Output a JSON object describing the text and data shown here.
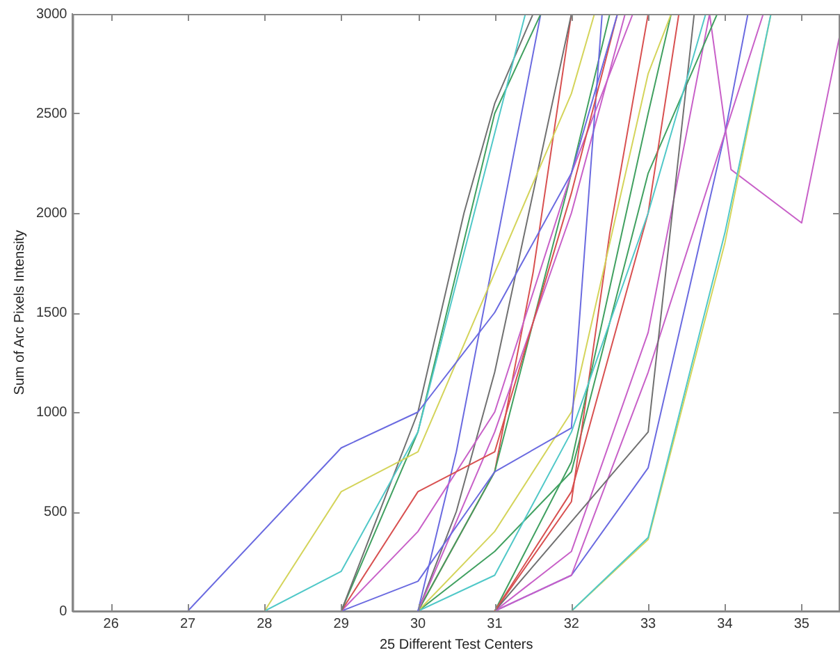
{
  "chart_data": {
    "type": "line",
    "xlabel": "25 Different Test Centers",
    "ylabel": "Sum of Arc Pixels Intensity",
    "xlim": [
      25.5,
      35.5
    ],
    "xticks": [
      26,
      27,
      28,
      29,
      30,
      31,
      32,
      33,
      34,
      35
    ],
    "ylim": [
      0,
      3000
    ],
    "yticks": [
      0,
      500,
      1000,
      1500,
      2000,
      2500,
      3000
    ],
    "grid": false,
    "legend": false,
    "marker": "none",
    "line_style": "solid",
    "series": [
      {
        "color": "#6a6ae0",
        "x": [
          27,
          29,
          30,
          31,
          32,
          32.6
        ],
        "values": [
          0,
          820,
          1000,
          1500,
          2200,
          3000
        ]
      },
      {
        "color": "#d4d45a",
        "x": [
          28,
          29,
          30,
          31,
          32,
          32.3
        ],
        "values": [
          0,
          600,
          800,
          1700,
          2600,
          3000
        ]
      },
      {
        "color": "#50c8c8",
        "x": [
          28,
          29,
          30,
          31,
          31.4
        ],
        "values": [
          0,
          200,
          900,
          2400,
          3000
        ]
      },
      {
        "color": "#707070",
        "x": [
          29,
          30,
          30.6,
          31,
          31.5
        ],
        "values": [
          0,
          1000,
          2000,
          2550,
          3000
        ]
      },
      {
        "color": "#40a060",
        "x": [
          29,
          30,
          31,
          31.6
        ],
        "values": [
          0,
          900,
          2500,
          3000
        ]
      },
      {
        "color": "#d85050",
        "x": [
          29,
          30,
          31,
          32,
          32.6
        ],
        "values": [
          0,
          600,
          800,
          2100,
          3000
        ]
      },
      {
        "color": "#c860c8",
        "x": [
          29,
          30,
          31,
          32,
          32.8
        ],
        "values": [
          0,
          400,
          1000,
          2200,
          3000
        ]
      },
      {
        "color": "#6a6ae0",
        "x": [
          29,
          30,
          31,
          32,
          32.4
        ],
        "values": [
          0,
          150,
          700,
          920,
          3000
        ]
      },
      {
        "color": "#6a6ae0",
        "x": [
          30,
          30.5,
          31,
          31.6
        ],
        "values": [
          0,
          800,
          1800,
          3000
        ]
      },
      {
        "color": "#c860c8",
        "x": [
          30,
          31,
          32,
          32.7
        ],
        "values": [
          0,
          900,
          2000,
          3000
        ]
      },
      {
        "color": "#40a060",
        "x": [
          30,
          31,
          32,
          32.5
        ],
        "values": [
          0,
          700,
          2200,
          3000
        ]
      },
      {
        "color": "#50c8c8",
        "x": [
          30,
          31,
          32,
          33,
          33.75
        ],
        "values": [
          0,
          180,
          900,
          2000,
          3000
        ]
      },
      {
        "color": "#d4d45a",
        "x": [
          30,
          31,
          32,
          33,
          33.3
        ],
        "values": [
          0,
          400,
          1000,
          2700,
          3000
        ]
      },
      {
        "color": "#d85050",
        "x": [
          31,
          32,
          33,
          33.4
        ],
        "values": [
          0,
          600,
          2000,
          3000
        ]
      },
      {
        "color": "#40a060",
        "x": [
          31,
          32,
          33,
          33.3
        ],
        "values": [
          0,
          750,
          2500,
          3000
        ]
      },
      {
        "color": "#707070",
        "x": [
          31,
          32,
          33,
          33.6
        ],
        "values": [
          0,
          450,
          900,
          3000
        ]
      },
      {
        "color": "#c860c8",
        "x": [
          31,
          32,
          33,
          34,
          34.5
        ],
        "values": [
          0,
          180,
          1200,
          2400,
          3000
        ]
      },
      {
        "color": "#d85050",
        "x": [
          31,
          32,
          32.5,
          33
        ],
        "values": [
          0,
          550,
          1900,
          3000
        ]
      },
      {
        "color": "#6a6ae0",
        "x": [
          31,
          32,
          33,
          34,
          34.3
        ],
        "values": [
          0,
          180,
          720,
          2400,
          3000
        ]
      },
      {
        "color": "#50c8c8",
        "x": [
          32,
          33,
          34,
          34.6
        ],
        "values": [
          0,
          370,
          1900,
          3000
        ]
      },
      {
        "color": "#d4d45a",
        "x": [
          32,
          33,
          34,
          34.6
        ],
        "values": [
          0,
          360,
          1850,
          3000
        ]
      },
      {
        "color": "#40a060",
        "x": [
          30,
          31,
          32,
          33,
          33.9
        ],
        "values": [
          0,
          300,
          700,
          2200,
          3000
        ]
      },
      {
        "color": "#c860c8",
        "x": [
          31,
          32,
          33,
          33.8,
          34.08,
          35,
          35.5
        ],
        "values": [
          0,
          300,
          1400,
          3000,
          2218,
          1950,
          2900
        ]
      },
      {
        "color": "#707070",
        "x": [
          30,
          30.5,
          31,
          31.5,
          32
        ],
        "values": [
          0,
          500,
          1200,
          2100,
          3000
        ]
      },
      {
        "color": "#d85050",
        "x": [
          30,
          31,
          31.5,
          32
        ],
        "values": [
          0,
          700,
          1700,
          3000
        ]
      }
    ]
  }
}
